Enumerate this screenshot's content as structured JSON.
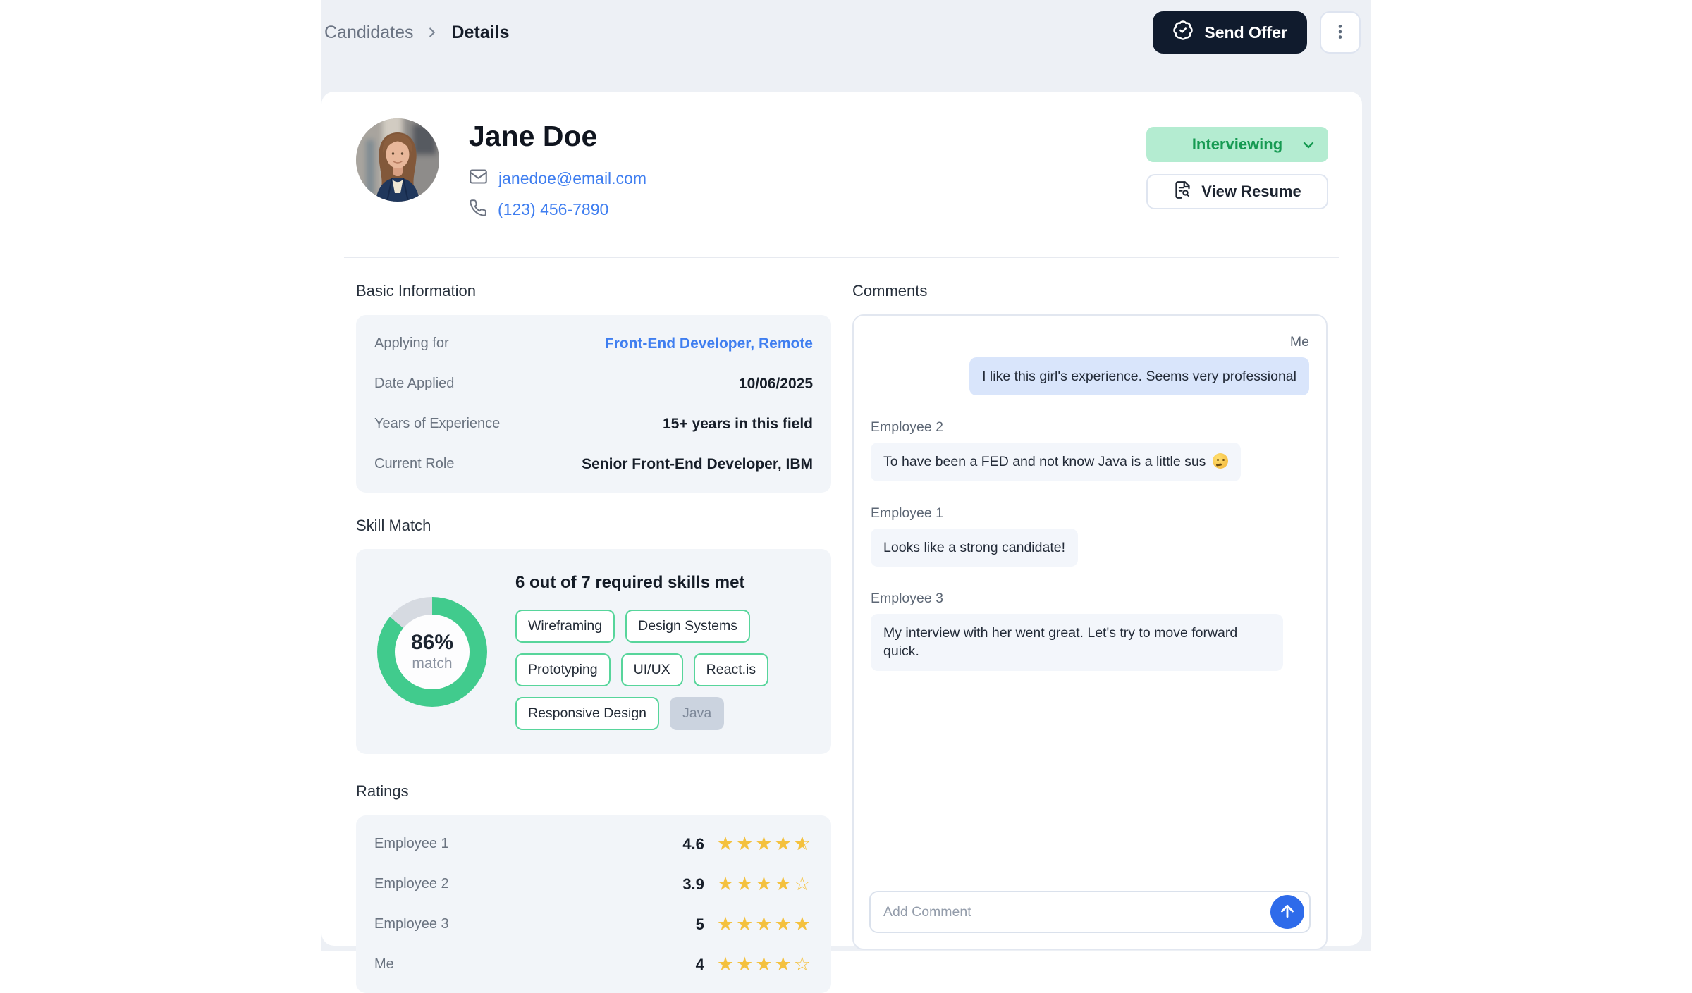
{
  "breadcrumb": {
    "parent": "Candidates",
    "current": "Details"
  },
  "topbar": {
    "send_offer_label": "Send Offer"
  },
  "profile": {
    "name": "Jane Doe",
    "email": "janedoe@email.com",
    "phone": "(123) 456-7890",
    "status": "Interviewing",
    "view_resume_label": "View Resume"
  },
  "basic_info": {
    "title": "Basic Information",
    "rows": [
      {
        "label": "Applying for",
        "value": "Front-End Developer, Remote",
        "link": true
      },
      {
        "label": "Date Applied",
        "value": "10/06/2025",
        "link": false
      },
      {
        "label": "Years of Experience",
        "value": "15+ years in this field",
        "link": false
      },
      {
        "label": "Current Role",
        "value": "Senior Front-End Developer, IBM",
        "link": false
      }
    ]
  },
  "skill_match": {
    "title": "Skill Match",
    "headline": "6 out of 7 required skills met",
    "percent": "86%",
    "percent_value": 86,
    "percent_label": "match",
    "skills_met": [
      "Wireframing",
      "Design Systems",
      "Prototyping",
      "UI/UX",
      "React.is",
      "Responsive Design"
    ],
    "skills_not_met": [
      "Java"
    ]
  },
  "ratings": {
    "title": "Ratings",
    "rows": [
      {
        "name": "Employee 1",
        "display": "4.6",
        "value": 4.6
      },
      {
        "name": "Employee 2",
        "display": "3.9",
        "value": 3.9
      },
      {
        "name": "Employee 3",
        "display": "5",
        "value": 5
      },
      {
        "name": "Me",
        "display": "4",
        "value": 4
      }
    ]
  },
  "comments": {
    "title": "Comments",
    "messages": [
      {
        "author": "Me",
        "text": "I like this girl's experience. Seems very professional",
        "own": true
      },
      {
        "author": "Employee 2",
        "text": "To have been a FED and not know Java is a little sus 🤔",
        "own": false
      },
      {
        "author": "Employee 1",
        "text": "Looks like a strong candidate!",
        "own": false
      },
      {
        "author": "Employee 3",
        "text": "My interview with her went great. Let's try to move forward quick.",
        "own": false
      }
    ],
    "input_placeholder": "Add Comment"
  },
  "colors": {
    "donut_green": "#41cb8d",
    "donut_remainder": "#d6dae1",
    "status_green_bg": "#b4ecd1",
    "status_green_text": "#169a52",
    "link_blue": "#3f7ef0",
    "star_gold": "#f4c13e",
    "dark_button": "#101b2d",
    "send_blue": "#2e6bea",
    "own_bubble_blue": "#d9e5fb"
  }
}
